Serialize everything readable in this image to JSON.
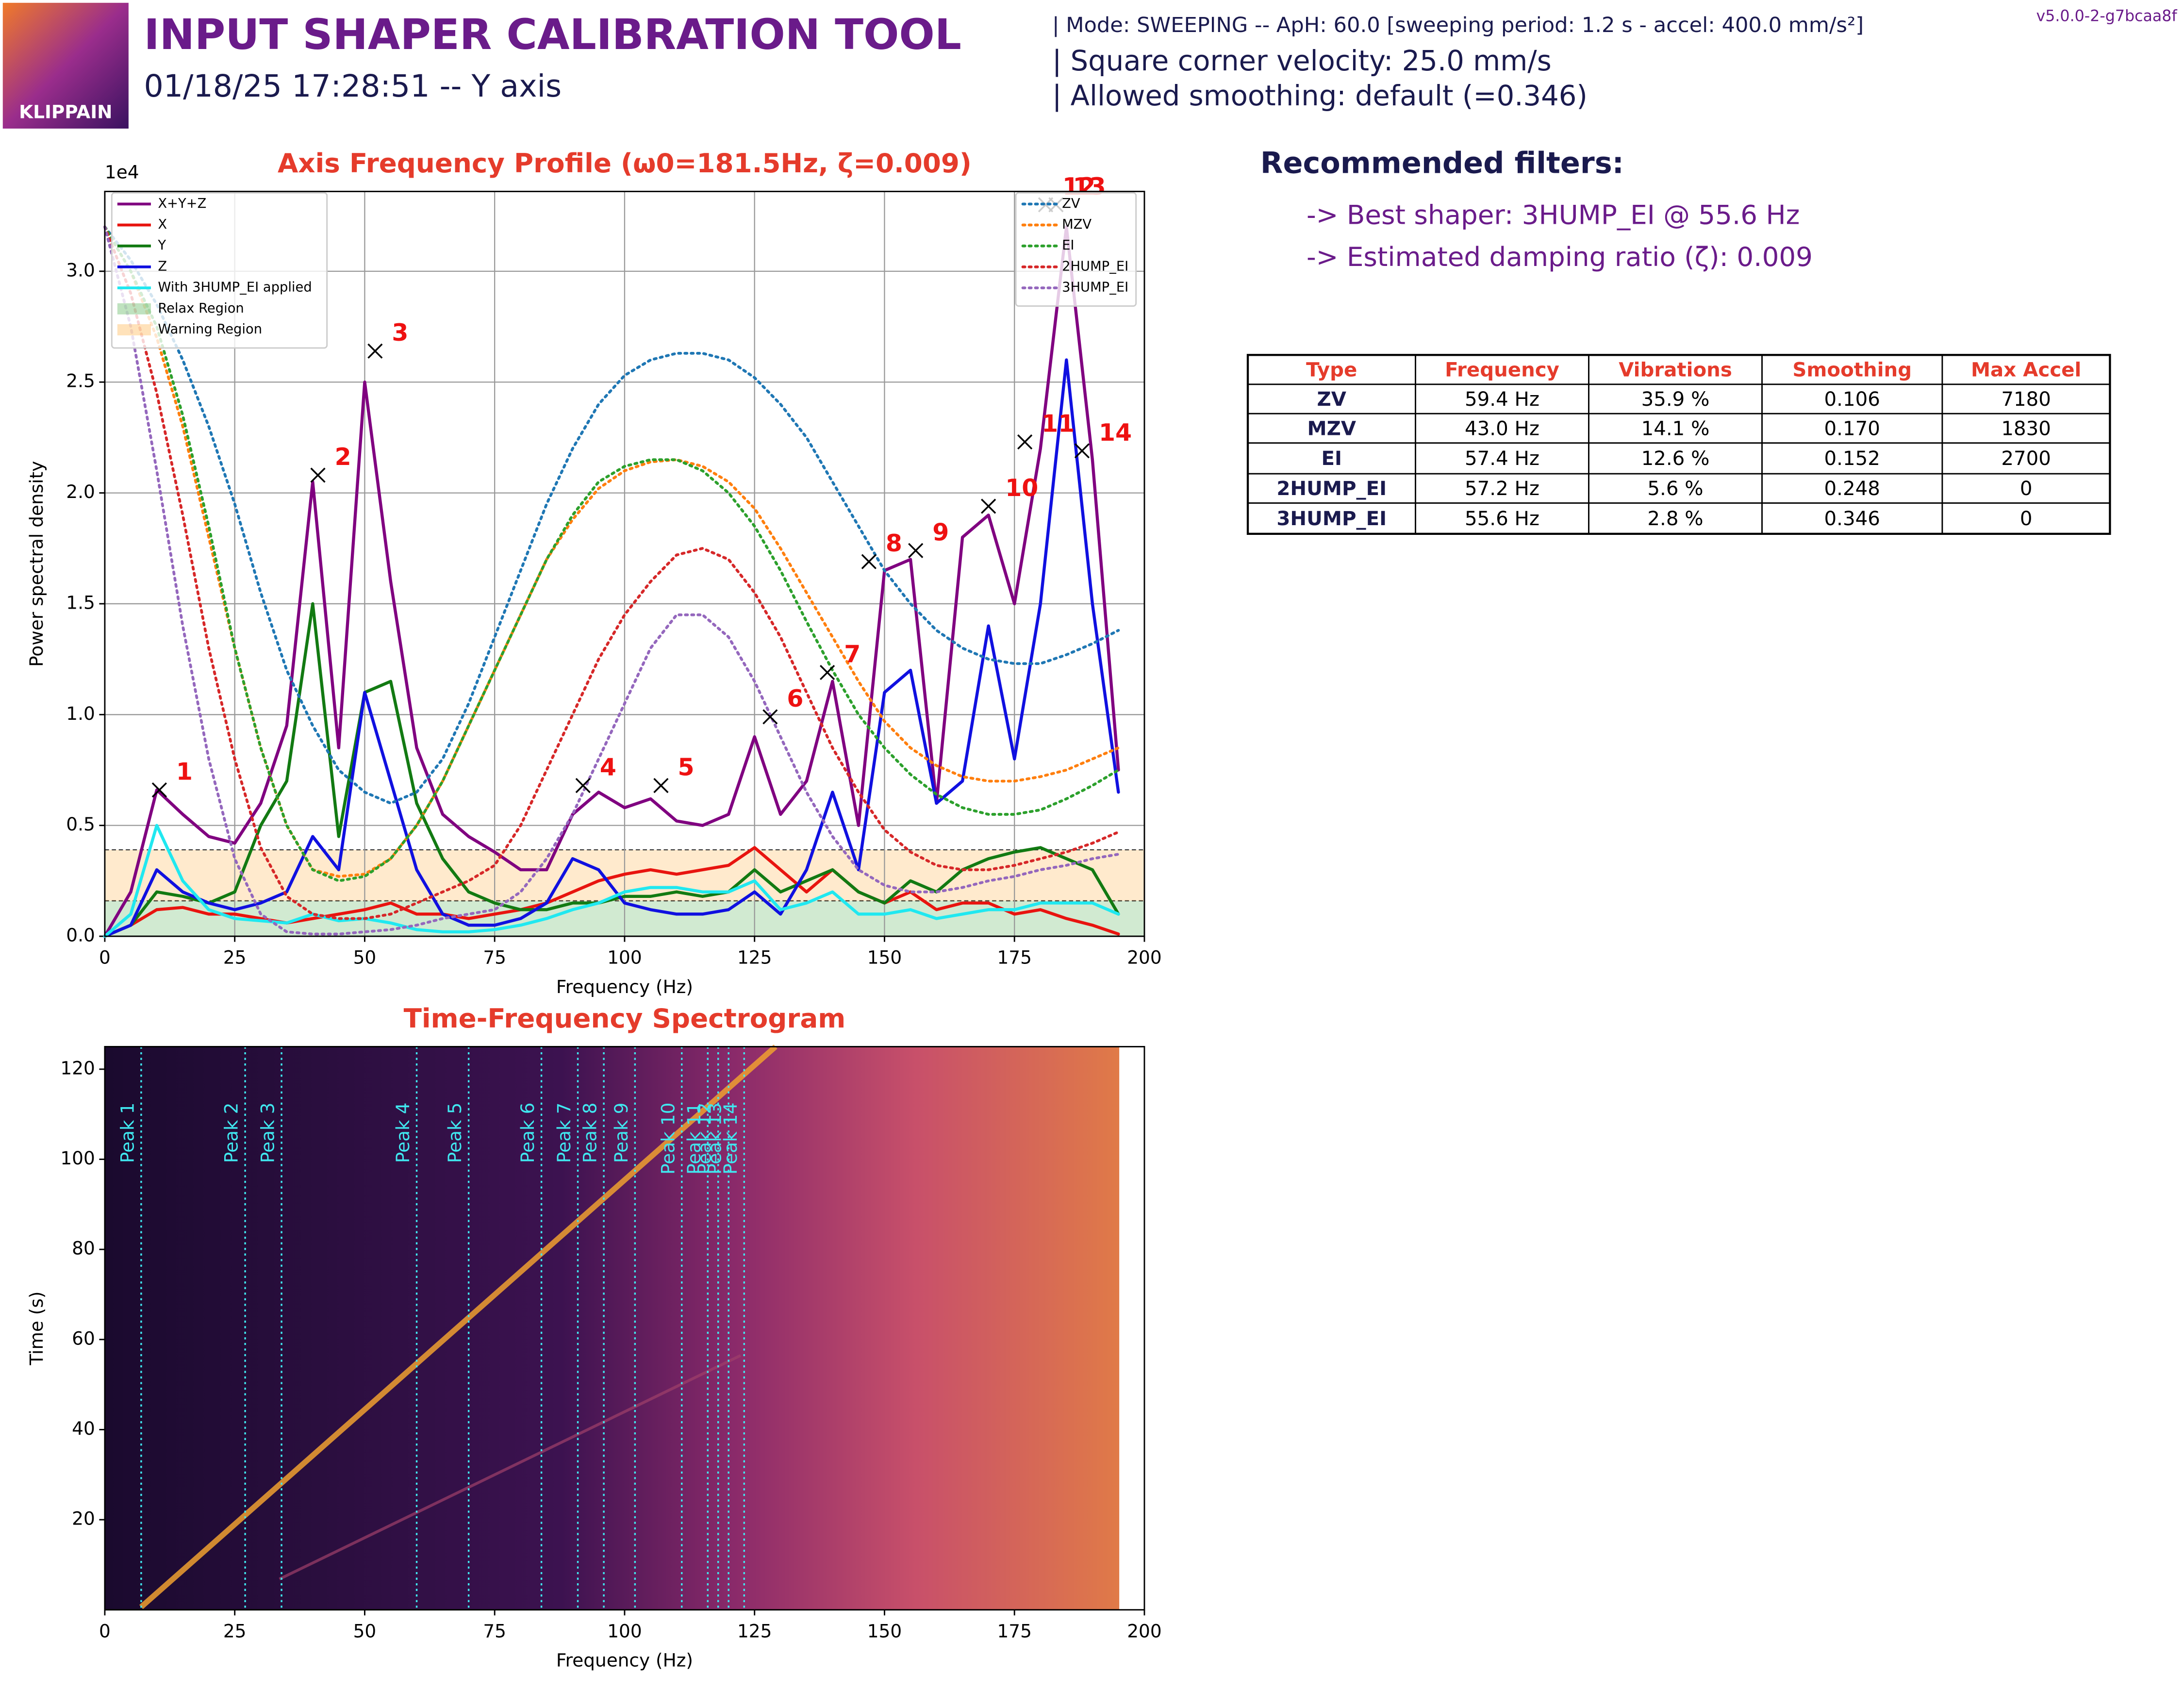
{
  "header": {
    "logo_text": "KLIPPAIN",
    "title": "INPUT SHAPER CALIBRATION TOOL",
    "subtitle": "01/18/25 17:28:51 -- Y axis",
    "info": [
      "| Mode: SWEEPING -- ApH: 60.0 [sweeping period: 1.2 s - accel: 400.0 mm/s²]",
      "| Square corner velocity: 25.0 mm/s",
      "| Allowed smoothing: default (=0.346)"
    ],
    "version": "v5.0.0-2-g7bcaa8f"
  },
  "filters": {
    "heading": "Recommended filters:",
    "lines": [
      "-> Best shaper: 3HUMP_EI @ 55.6 Hz",
      "-> Estimated damping ratio (ζ): 0.009"
    ]
  },
  "table": {
    "header": [
      "Type",
      "Frequency",
      "Vibrations",
      "Smoothing",
      "Max Accel"
    ],
    "rows": [
      [
        "ZV",
        "59.4 Hz",
        "35.9 %",
        "0.106",
        "7180"
      ],
      [
        "MZV",
        "43.0 Hz",
        "14.1 %",
        "0.170",
        "1830"
      ],
      [
        "EI",
        "57.4 Hz",
        "12.6 %",
        "0.152",
        "2700"
      ],
      [
        "2HUMP_EI",
        "57.2 Hz",
        "5.6 %",
        "0.248",
        "0"
      ],
      [
        "3HUMP_EI",
        "55.6 Hz",
        "2.8 %",
        "0.346",
        "0"
      ]
    ]
  },
  "chart_data": [
    {
      "type": "line",
      "title": "Axis Frequency Profile (ω0=181.5Hz, ζ=0.009)",
      "xlabel": "Frequency (Hz)",
      "ylabel": "Power spectral density",
      "y_offset_label": "1e4",
      "xlim": [
        0,
        200
      ],
      "ylim": [
        0,
        3.36
      ],
      "xticks": [
        0,
        25,
        50,
        75,
        100,
        125,
        150,
        175,
        200
      ],
      "yticks": [
        {
          "value": 0,
          "label": "0.0"
        },
        0.5,
        {
          "value": 1,
          "label": "1.0"
        },
        1.5,
        {
          "value": 2,
          "label": "2.0"
        },
        2.5,
        {
          "value": 3,
          "label": "3.0"
        }
      ],
      "grid": true,
      "x": [
        0,
        5,
        10,
        15,
        20,
        25,
        30,
        35,
        40,
        45,
        50,
        55,
        60,
        65,
        70,
        75,
        80,
        85,
        90,
        95,
        100,
        105,
        110,
        115,
        120,
        125,
        130,
        135,
        140,
        145,
        150,
        155,
        160,
        165,
        170,
        175,
        180,
        185,
        190,
        195
      ],
      "series": [
        {
          "name": "X+Y+Z",
          "color": "#800080",
          "linestyle": "solid",
          "values": [
            0,
            0.2,
            0.66,
            0.55,
            0.45,
            0.42,
            0.6,
            0.95,
            2.05,
            0.85,
            2.5,
            1.6,
            0.85,
            0.55,
            0.45,
            0.38,
            0.3,
            0.3,
            0.55,
            0.65,
            0.58,
            0.62,
            0.52,
            0.5,
            0.55,
            0.9,
            0.55,
            0.7,
            1.15,
            0.5,
            1.65,
            1.7,
            0.6,
            1.8,
            1.9,
            1.5,
            2.2,
            3.2,
            2.15,
            0.75
          ]
        },
        {
          "name": "X",
          "color": "#e8140f",
          "linestyle": "solid",
          "values": [
            0,
            0.05,
            0.12,
            0.13,
            0.1,
            0.1,
            0.08,
            0.06,
            0.08,
            0.1,
            0.12,
            0.15,
            0.1,
            0.1,
            0.08,
            0.1,
            0.12,
            0.15,
            0.2,
            0.25,
            0.28,
            0.3,
            0.28,
            0.3,
            0.32,
            0.4,
            0.3,
            0.2,
            0.3,
            0.2,
            0.15,
            0.2,
            0.12,
            0.15,
            0.15,
            0.1,
            0.12,
            0.08,
            0.05,
            0.01
          ]
        },
        {
          "name": "Y",
          "color": "#127a12",
          "linestyle": "solid",
          "values": [
            0,
            0.05,
            0.2,
            0.18,
            0.15,
            0.2,
            0.5,
            0.7,
            1.5,
            0.45,
            1.1,
            1.15,
            0.6,
            0.35,
            0.2,
            0.15,
            0.12,
            0.12,
            0.15,
            0.15,
            0.18,
            0.18,
            0.2,
            0.18,
            0.2,
            0.3,
            0.2,
            0.25,
            0.3,
            0.2,
            0.15,
            0.25,
            0.2,
            0.3,
            0.35,
            0.38,
            0.4,
            0.35,
            0.3,
            0.1
          ]
        },
        {
          "name": "Z",
          "color": "#1010e0",
          "linestyle": "solid",
          "values": [
            0,
            0.05,
            0.3,
            0.2,
            0.15,
            0.12,
            0.15,
            0.2,
            0.45,
            0.3,
            1.1,
            0.7,
            0.3,
            0.1,
            0.05,
            0.05,
            0.08,
            0.15,
            0.35,
            0.3,
            0.15,
            0.12,
            0.1,
            0.1,
            0.12,
            0.2,
            0.1,
            0.3,
            0.65,
            0.3,
            1.1,
            1.2,
            0.6,
            0.7,
            1.4,
            0.8,
            1.5,
            2.6,
            1.5,
            0.65
          ]
        },
        {
          "name": "With 3HUMP_EI applied",
          "color": "#20e8f0",
          "linestyle": "solid",
          "values": [
            0,
            0.1,
            0.5,
            0.25,
            0.12,
            0.08,
            0.07,
            0.06,
            0.1,
            0.07,
            0.08,
            0.06,
            0.03,
            0.02,
            0.02,
            0.03,
            0.05,
            0.08,
            0.12,
            0.15,
            0.2,
            0.22,
            0.22,
            0.2,
            0.2,
            0.25,
            0.12,
            0.15,
            0.2,
            0.1,
            0.1,
            0.12,
            0.08,
            0.1,
            0.12,
            0.12,
            0.15,
            0.15,
            0.15,
            0.1
          ]
        },
        {
          "name": "ZV",
          "color": "#1f77b4",
          "linestyle": "dotted",
          "values": [
            3.2,
            3.05,
            2.85,
            2.6,
            2.3,
            1.95,
            1.55,
            1.2,
            0.95,
            0.75,
            0.65,
            0.6,
            0.65,
            0.8,
            1.05,
            1.35,
            1.65,
            1.95,
            2.2,
            2.4,
            2.53,
            2.6,
            2.63,
            2.63,
            2.6,
            2.52,
            2.4,
            2.25,
            2.05,
            1.85,
            1.65,
            1.5,
            1.38,
            1.3,
            1.25,
            1.23,
            1.23,
            1.27,
            1.32,
            1.38
          ]
        },
        {
          "name": "MZV",
          "color": "#ff7f0e",
          "linestyle": "dotted",
          "values": [
            3.2,
            3.0,
            2.7,
            2.3,
            1.8,
            1.3,
            0.85,
            0.5,
            0.3,
            0.27,
            0.28,
            0.35,
            0.5,
            0.7,
            0.95,
            1.2,
            1.45,
            1.7,
            1.88,
            2.02,
            2.1,
            2.14,
            2.15,
            2.12,
            2.05,
            1.93,
            1.75,
            1.55,
            1.35,
            1.15,
            0.97,
            0.85,
            0.77,
            0.72,
            0.7,
            0.7,
            0.72,
            0.75,
            0.8,
            0.85
          ]
        },
        {
          "name": "EI",
          "color": "#2ca02c",
          "linestyle": "dotted",
          "values": [
            3.2,
            3.0,
            2.75,
            2.35,
            1.85,
            1.3,
            0.85,
            0.5,
            0.3,
            0.25,
            0.27,
            0.35,
            0.5,
            0.7,
            0.95,
            1.2,
            1.45,
            1.7,
            1.9,
            2.05,
            2.12,
            2.15,
            2.15,
            2.1,
            2.0,
            1.85,
            1.65,
            1.42,
            1.2,
            1.0,
            0.85,
            0.73,
            0.64,
            0.58,
            0.55,
            0.55,
            0.57,
            0.62,
            0.68,
            0.75
          ]
        },
        {
          "name": "2HUMP_EI",
          "color": "#d62728",
          "linestyle": "dotted",
          "values": [
            3.2,
            2.9,
            2.45,
            1.9,
            1.3,
            0.8,
            0.4,
            0.18,
            0.1,
            0.08,
            0.08,
            0.1,
            0.15,
            0.2,
            0.25,
            0.32,
            0.5,
            0.75,
            1.0,
            1.25,
            1.45,
            1.6,
            1.72,
            1.75,
            1.7,
            1.55,
            1.35,
            1.1,
            0.85,
            0.65,
            0.48,
            0.38,
            0.32,
            0.3,
            0.3,
            0.32,
            0.35,
            0.38,
            0.42,
            0.47
          ]
        },
        {
          "name": "3HUMP_EI",
          "color": "#9467bd",
          "linestyle": "dotted",
          "values": [
            3.2,
            2.75,
            2.1,
            1.4,
            0.8,
            0.35,
            0.1,
            0.02,
            0.01,
            0.01,
            0.02,
            0.03,
            0.05,
            0.08,
            0.1,
            0.12,
            0.2,
            0.35,
            0.55,
            0.8,
            1.05,
            1.3,
            1.45,
            1.45,
            1.35,
            1.15,
            0.9,
            0.65,
            0.45,
            0.3,
            0.23,
            0.2,
            0.2,
            0.22,
            0.25,
            0.27,
            0.3,
            0.32,
            0.35,
            0.37
          ]
        }
      ],
      "regions": [
        {
          "name": "Relax Region",
          "color": "#2ca02c",
          "range": [
            0,
            0.16
          ]
        },
        {
          "name": "Warning Region",
          "color": "#ff9e1a",
          "range": [
            0.16,
            0.39
          ]
        }
      ],
      "peak_color": "#ee1111",
      "peaks": [
        {
          "label": "1",
          "x": 10.5,
          "y": 0.66
        },
        {
          "label": "2",
          "x": 41,
          "y": 2.08
        },
        {
          "label": "3",
          "x": 52,
          "y": 2.64
        },
        {
          "label": "4",
          "x": 92,
          "y": 0.68
        },
        {
          "label": "5",
          "x": 107,
          "y": 0.68
        },
        {
          "label": "6",
          "x": 128,
          "y": 0.99
        },
        {
          "label": "7",
          "x": 139,
          "y": 1.19
        },
        {
          "label": "8",
          "x": 147,
          "y": 1.69
        },
        {
          "label": "9",
          "x": 156,
          "y": 1.74
        },
        {
          "label": "10",
          "x": 170,
          "y": 1.94
        },
        {
          "label": "11",
          "x": 177,
          "y": 2.23
        },
        {
          "label": "12",
          "x": 181,
          "y": 3.3
        },
        {
          "label": "13",
          "x": 183,
          "y": 3.3
        },
        {
          "label": "14",
          "x": 188,
          "y": 2.19
        }
      ]
    },
    {
      "type": "spectrogram",
      "title": "Time-Frequency Spectrogram",
      "xlabel": "Frequency (Hz)",
      "ylabel": "Time (s)",
      "xlim": [
        0,
        200
      ],
      "ylim": [
        0,
        125
      ],
      "xticks": [
        0,
        25,
        50,
        75,
        100,
        125,
        150,
        175,
        200
      ],
      "yticks": [
        20,
        40,
        60,
        80,
        100,
        120
      ],
      "peak_color": "#40e8f0",
      "peaks": [
        {
          "label": "Peak 1",
          "x": 7
        },
        {
          "label": "Peak 2",
          "x": 27
        },
        {
          "label": "Peak 3",
          "x": 34
        },
        {
          "label": "Peak 4",
          "x": 60
        },
        {
          "label": "Peak 5",
          "x": 70
        },
        {
          "label": "Peak 6",
          "x": 84
        },
        {
          "label": "Peak 7",
          "x": 91
        },
        {
          "label": "Peak 8",
          "x": 96
        },
        {
          "label": "Peak 9",
          "x": 102
        },
        {
          "label": "Peak 10",
          "x": 111
        },
        {
          "label": "Peak 11",
          "x": 116
        },
        {
          "label": "Peak 12",
          "x": 118
        },
        {
          "label": "Peak 13",
          "x": 120
        },
        {
          "label": "Peak 14",
          "x": 123
        }
      ]
    }
  ]
}
